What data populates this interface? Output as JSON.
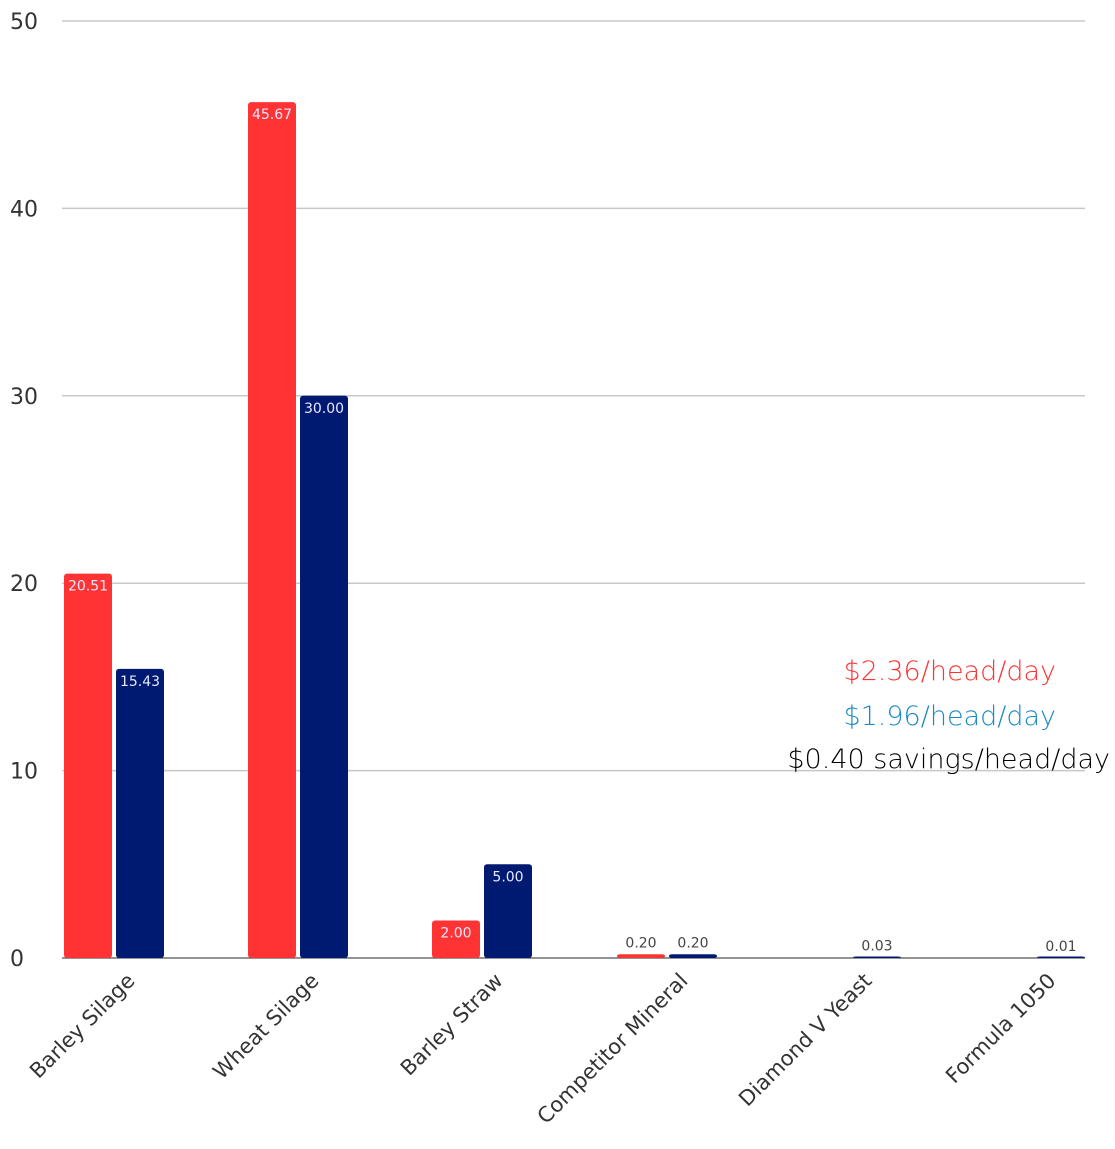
{
  "chart_data": {
    "type": "bar",
    "categories": [
      "Barley Silage",
      "Wheat Silage",
      "Barley Straw",
      "Competitor Mineral",
      "Diamond V Yeast",
      "Formula 1050"
    ],
    "series": [
      {
        "color": "#ff3333",
        "values": [
          20.51,
          45.67,
          2.0,
          0.2,
          null,
          null
        ],
        "labels": [
          "20.51",
          "45.67",
          "2.00",
          "0.20",
          "",
          ""
        ]
      },
      {
        "color": "#001a72",
        "values": [
          15.43,
          30.0,
          5.0,
          0.2,
          0.03,
          0.01
        ],
        "labels": [
          "15.43",
          "30.00",
          "5.00",
          "0.20",
          "0.03",
          "0.01"
        ]
      }
    ],
    "ylim": [
      0,
      50
    ],
    "yticks": [
      "0",
      "10",
      "20",
      "30",
      "40",
      "50"
    ],
    "ytick_values": [
      0,
      10,
      20,
      30,
      40,
      50
    ],
    "grid": true,
    "title": "",
    "xlabel": "",
    "ylabel": "",
    "annotations": [
      {
        "text": "$2.36/head/day",
        "color": "#ff3333"
      },
      {
        "text": "$1.96/head/day",
        "color": "#1a8ac4"
      },
      {
        "text": "$0.40 savings/head/day",
        "color": "#000000"
      }
    ]
  }
}
